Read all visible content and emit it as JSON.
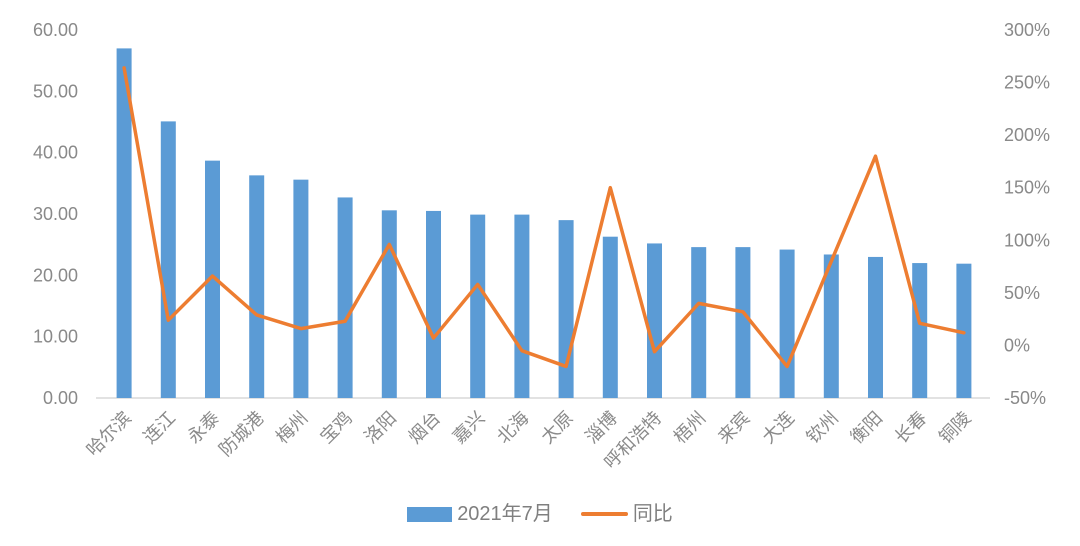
{
  "chart": {
    "background": "#ffffff",
    "legend": {
      "bar": {
        "label": "2021年7月",
        "color": "#5B9BD5"
      },
      "line": {
        "label": "同比",
        "color": "#ED7D31"
      }
    }
  },
  "chart_data": {
    "type": "bar",
    "subtype": "combo-bar-line",
    "title": "",
    "xlabel": "",
    "ylabel": "",
    "grid": false,
    "legend_position": "bottom",
    "categories": [
      "哈尔滨",
      "连江",
      "永泰",
      "防城港",
      "梅州",
      "宝鸡",
      "洛阳",
      "烟台",
      "嘉兴",
      "北海",
      "太原",
      "淄博",
      "呼和浩特",
      "梧州",
      "来宾",
      "大连",
      "钦州",
      "衡阳",
      "长春",
      "铜陵"
    ],
    "series": [
      {
        "name": "2021年7月",
        "type": "bar",
        "yaxis": "left",
        "color": "#5B9BD5",
        "values": [
          57.0,
          45.1,
          38.7,
          36.3,
          35.6,
          32.7,
          30.6,
          30.5,
          29.9,
          29.9,
          29.0,
          26.3,
          25.2,
          24.6,
          24.6,
          24.2,
          23.4,
          23.0,
          22.0,
          21.9
        ]
      },
      {
        "name": "同比",
        "type": "line",
        "yaxis": "right",
        "unit": "%",
        "color": "#ED7D31",
        "values": [
          264,
          24,
          66,
          29,
          16,
          23,
          96,
          7,
          58,
          -5,
          -20,
          150,
          -6,
          40,
          32,
          -20,
          80,
          180,
          21,
          12
        ]
      }
    ],
    "left_axis": {
      "min": 0,
      "max": 60,
      "step": 10,
      "tick_labels": [
        "0.00",
        "10.00",
        "20.00",
        "30.00",
        "40.00",
        "50.00",
        "60.00"
      ]
    },
    "right_axis": {
      "min": -50,
      "max": 300,
      "step": 50,
      "tick_labels": [
        "-50%",
        "0%",
        "50%",
        "100%",
        "150%",
        "200%",
        "250%",
        "300%"
      ]
    }
  }
}
